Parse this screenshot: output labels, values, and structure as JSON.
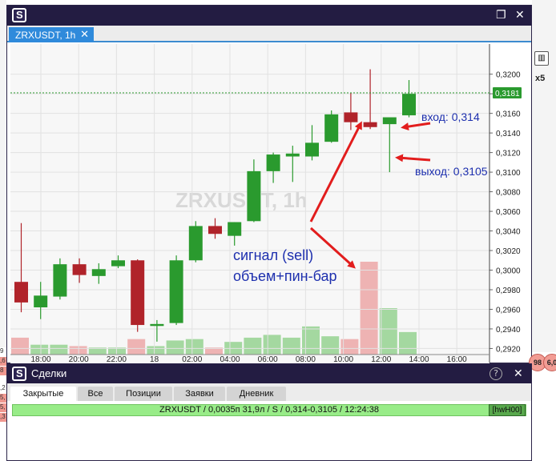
{
  "chart_window": {
    "tab_label": "ZRXUSDT, 1h",
    "watermark": "ZRXUSDT, 1h",
    "maximize_icon": "maximize-icon",
    "close_icon": "close-icon"
  },
  "side_toolbar": {
    "indicator_icon": "candles-icon",
    "multiplier": "x5"
  },
  "chart_data": {
    "type": "candlestick",
    "symbol": "ZRXUSDT",
    "timeframe": "1h",
    "x_tick_labels": [
      "18:00",
      "20:00",
      "22:00",
      "18",
      "02:00",
      "04:00",
      "06:00",
      "08:00",
      "10:00",
      "12:00",
      "14:00",
      "16:00"
    ],
    "y_tick_labels": [
      "0,3200",
      "0,3180",
      "0,3160",
      "0,3140",
      "0,3120",
      "0,3100",
      "0,3080",
      "0,3060",
      "0,3040",
      "0,3020",
      "0,3000",
      "0,2980",
      "0,2960",
      "0,2940",
      "0,2920"
    ],
    "ylim": [
      0.2913,
      0.3212
    ],
    "current_price": 0.3181,
    "current_price_label": "0,3181",
    "candles": [
      {
        "o": 0.2988,
        "h": 0.3048,
        "l": 0.2957,
        "c": 0.2967
      },
      {
        "o": 0.2962,
        "h": 0.2988,
        "l": 0.295,
        "c": 0.2974
      },
      {
        "o": 0.2973,
        "h": 0.3012,
        "l": 0.297,
        "c": 0.3006
      },
      {
        "o": 0.3006,
        "h": 0.3012,
        "l": 0.2987,
        "c": 0.2995
      },
      {
        "o": 0.2994,
        "h": 0.3007,
        "l": 0.2986,
        "c": 0.3001
      },
      {
        "o": 0.3004,
        "h": 0.3015,
        "l": 0.3002,
        "c": 0.301
      },
      {
        "o": 0.301,
        "h": 0.3011,
        "l": 0.2937,
        "c": 0.2944
      },
      {
        "o": 0.2943,
        "h": 0.2949,
        "l": 0.2927,
        "c": 0.2945
      },
      {
        "o": 0.2946,
        "h": 0.3015,
        "l": 0.2944,
        "c": 0.301
      },
      {
        "o": 0.301,
        "h": 0.305,
        "l": 0.3008,
        "c": 0.3045
      },
      {
        "o": 0.3045,
        "h": 0.3053,
        "l": 0.3032,
        "c": 0.3037
      },
      {
        "o": 0.3035,
        "h": 0.3049,
        "l": 0.3025,
        "c": 0.3049
      },
      {
        "o": 0.305,
        "h": 0.3113,
        "l": 0.3049,
        "c": 0.3101
      },
      {
        "o": 0.3101,
        "h": 0.312,
        "l": 0.3089,
        "c": 0.3118
      },
      {
        "o": 0.3116,
        "h": 0.3127,
        "l": 0.309,
        "c": 0.3119
      },
      {
        "o": 0.3116,
        "h": 0.3148,
        "l": 0.3112,
        "c": 0.313
      },
      {
        "o": 0.3131,
        "h": 0.3163,
        "l": 0.313,
        "c": 0.3159
      },
      {
        "o": 0.3161,
        "h": 0.3181,
        "l": 0.3143,
        "c": 0.3151
      },
      {
        "o": 0.3151,
        "h": 0.3205,
        "l": 0.3144,
        "c": 0.3146
      },
      {
        "o": 0.3149,
        "h": 0.3155,
        "l": 0.31,
        "c": 0.3156
      },
      {
        "o": 0.3158,
        "h": 0.3194,
        "l": 0.3156,
        "c": 0.318
      }
    ],
    "volume_max": 6.6,
    "volumes": [
      1.2,
      0.7,
      0.7,
      0.6,
      0.5,
      0.5,
      1.1,
      0.6,
      1.0,
      1.1,
      0.5,
      0.9,
      1.2,
      1.4,
      1.2,
      2.0,
      1.3,
      1.1,
      6.6,
      3.3,
      1.6
    ]
  },
  "annotations": {
    "entry": "вход: 0,314",
    "exit": "выход:  0,3105",
    "signal_line1": "сигнал (sell)",
    "signal_line2": "объем+пин-бар"
  },
  "deals_window": {
    "title": "Сделки",
    "help_icon": "help-icon",
    "close_icon": "close-icon",
    "tabs": [
      "Закрытые",
      "Все",
      "Позиции",
      "Заявки",
      "Дневник"
    ],
    "deal_row": "ZRXUSDT / 0,0035п 31,9л / S / 0,314-0,3105 / 12:24:38",
    "deal_tag": "[hwH00]"
  },
  "colors": {
    "bull": "#2a9a2e",
    "bear": "#b0232a",
    "bull_volume": "#a4d8a0",
    "bear_volume": "#eeb3b3",
    "arrow": "#e21d1d",
    "annotation_text": "#1d2fae",
    "price_line": "#2a9a2e",
    "title_bar": "#231c42",
    "tab_active": "#2f8adb"
  },
  "edge": {
    "right_bubble1": "98",
    "right_bubble2": "6,0",
    "left_cells": [
      "9",
      ",6",
      "8",
      ",2",
      "5,",
      "5,",
      ",3"
    ]
  }
}
